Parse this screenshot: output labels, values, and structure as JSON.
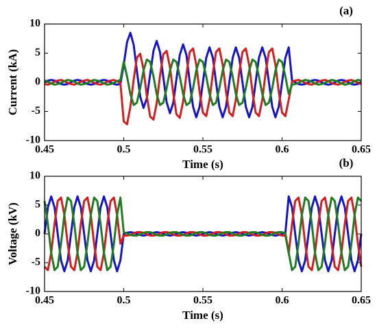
{
  "chart_data": [
    {
      "type": "line",
      "panel_label": "(a)",
      "x_label": "Time (s)",
      "y_label": "Current (kA)",
      "xlim": [
        0.45,
        0.65
      ],
      "xticks": [
        0.45,
        0.5,
        0.55,
        0.6,
        0.65
      ],
      "ylim": [
        -10,
        10
      ],
      "yticks": [
        -10,
        -5,
        0,
        5,
        10
      ],
      "x": [
        0.45,
        0.4521,
        0.4542,
        0.4563,
        0.4583,
        0.4604,
        0.4625,
        0.4646,
        0.4667,
        0.4688,
        0.4708,
        0.4729,
        0.475,
        0.4771,
        0.4792,
        0.4813,
        0.4833,
        0.4854,
        0.4875,
        0.4896,
        0.4917,
        0.4938,
        0.4958,
        0.4979,
        0.5,
        0.5021,
        0.5042,
        0.5063,
        0.5083,
        0.5104,
        0.5125,
        0.5146,
        0.5167,
        0.5188,
        0.5208,
        0.5229,
        0.525,
        0.5271,
        0.5292,
        0.5313,
        0.5333,
        0.5354,
        0.5375,
        0.5396,
        0.5417,
        0.5438,
        0.5458,
        0.5479,
        0.55,
        0.5521,
        0.5542,
        0.5563,
        0.5583,
        0.5604,
        0.5625,
        0.5646,
        0.5667,
        0.5688,
        0.5708,
        0.5729,
        0.575,
        0.5771,
        0.5792,
        0.5813,
        0.5833,
        0.5854,
        0.5875,
        0.5896,
        0.5917,
        0.5938,
        0.5958,
        0.5979,
        0.6,
        0.6021,
        0.6042,
        0.6063,
        0.6083,
        0.6104,
        0.6125,
        0.6146,
        0.6167,
        0.6188,
        0.6208,
        0.6229,
        0.625,
        0.6271,
        0.6292,
        0.6313,
        0.6333,
        0.6354,
        0.6375,
        0.6396,
        0.6417,
        0.6438,
        0.6458,
        0.6479,
        0.65
      ],
      "series": [
        {
          "color": "#1414c8",
          "values": [
            0,
            0.3,
            0.4,
            0.3,
            0,
            -0.3,
            -0.4,
            -0.3,
            0,
            0.3,
            0.4,
            0.3,
            0,
            -0.3,
            -0.4,
            -0.3,
            0,
            0.3,
            0.4,
            0.3,
            0,
            -0.3,
            -0.4,
            -0.3,
            3.0,
            6.9,
            8.5,
            6.4,
            2.0,
            -2.4,
            -4.4,
            -2.7,
            1.4,
            5.4,
            7.1,
            5.2,
            0.9,
            -3.4,
            -5.3,
            -3.5,
            0.6,
            4.7,
            6.5,
            4.7,
            0,
            -4.2,
            -6,
            -4.2,
            0,
            4.2,
            6,
            4.2,
            0,
            -4.2,
            -6,
            -4.2,
            0,
            4.2,
            6,
            4.2,
            0,
            -4.2,
            -6,
            -4.2,
            0,
            4.2,
            6,
            4.2,
            0,
            -4.2,
            -6,
            -4.2,
            0,
            4.2,
            6,
            0.3,
            0,
            -0.3,
            -0.4,
            -0.3,
            0,
            0.3,
            0.4,
            0.3,
            0,
            -0.3,
            -0.4,
            -0.3,
            0,
            0.3,
            0.4,
            0.3,
            0,
            -0.3,
            -0.4,
            -0.3,
            0
          ]
        },
        {
          "color": "#d41e1e",
          "values": [
            -0.3,
            -0.4,
            -0.2,
            0.1,
            0.3,
            0.4,
            0.2,
            -0.1,
            -0.3,
            -0.4,
            -0.2,
            0.1,
            0.3,
            0.4,
            0.2,
            -0.1,
            -0.3,
            -0.4,
            -0.2,
            0.1,
            0.3,
            0.4,
            0.2,
            -0.1,
            -6.7,
            -7.2,
            -4.2,
            0.5,
            4.2,
            4.9,
            2.2,
            -2.4,
            -5.9,
            -6.4,
            -3.6,
            1.1,
            4.8,
            5.4,
            2.6,
            -1.9,
            -5.5,
            -6.1,
            -3.3,
            1.4,
            5.2,
            5.8,
            3,
            -1.6,
            -5.2,
            -5.8,
            -3,
            1.6,
            5.2,
            5.8,
            3,
            -1.6,
            -5.2,
            -5.8,
            -3,
            1.6,
            5.2,
            5.8,
            3,
            -1.6,
            -5.2,
            -5.8,
            -3,
            1.6,
            5.2,
            5.8,
            3,
            -1.6,
            -5.2,
            -5.8,
            -3,
            0.1,
            0.3,
            0.4,
            0.2,
            -0.1,
            -0.3,
            -0.4,
            -0.2,
            0.1,
            0.3,
            0.4,
            0.2,
            -0.1,
            -0.3,
            -0.4,
            -0.2,
            0.1,
            0.3,
            0.4,
            0.2,
            -0.1,
            -0.3
          ]
        },
        {
          "color": "#1e7d1e",
          "values": [
            0.3,
            0.1,
            -0.2,
            -0.4,
            -0.3,
            -0.1,
            0.2,
            0.4,
            0.3,
            0.1,
            -0.2,
            -0.4,
            -0.3,
            -0.1,
            0.2,
            0.4,
            0.3,
            0.1,
            -0.2,
            -0.4,
            -0.3,
            -0.1,
            0.2,
            0.4,
            3.5,
            1,
            -2,
            -3.9,
            -3.5,
            -1,
            2,
            3.9,
            3.5,
            1,
            -2,
            -3.9,
            -3.5,
            -1,
            2,
            3.9,
            3.5,
            1,
            -2,
            -3.9,
            -3.5,
            -1,
            2,
            3.9,
            3.5,
            1,
            -2,
            -3.9,
            -3.5,
            -1,
            2,
            3.9,
            3.5,
            1,
            -2,
            -3.9,
            -3.5,
            -1,
            2,
            3.9,
            3.5,
            1,
            -2,
            -3.9,
            -3.5,
            -1,
            2,
            3.9,
            3.5,
            1,
            -2,
            -0.4,
            -0.3,
            -0.1,
            0.2,
            0.4,
            0.3,
            0.1,
            -0.2,
            -0.4,
            -0.3,
            -0.1,
            0.2,
            0.4,
            0.3,
            0.1,
            -0.2,
            -0.4,
            -0.3,
            -0.1,
            0.2,
            0.4,
            0.3
          ]
        }
      ]
    },
    {
      "type": "line",
      "panel_label": "(b)",
      "x_label": "Time (s)",
      "y_label": "Voltage (kV)",
      "xlim": [
        0.45,
        0.65
      ],
      "xticks": [
        0.45,
        0.5,
        0.55,
        0.6,
        0.65
      ],
      "ylim": [
        -10,
        10
      ],
      "yticks": [
        -10,
        -5,
        0,
        5,
        10
      ],
      "x": [
        0.45,
        0.4521,
        0.4542,
        0.4563,
        0.4583,
        0.4604,
        0.4625,
        0.4646,
        0.4667,
        0.4688,
        0.4708,
        0.4729,
        0.475,
        0.4771,
        0.4792,
        0.4813,
        0.4833,
        0.4854,
        0.4875,
        0.4896,
        0.4917,
        0.4938,
        0.4958,
        0.4979,
        0.5,
        0.5021,
        0.5042,
        0.5063,
        0.5083,
        0.5104,
        0.5125,
        0.5146,
        0.5167,
        0.5188,
        0.5208,
        0.5229,
        0.525,
        0.5271,
        0.5292,
        0.5313,
        0.5333,
        0.5354,
        0.5375,
        0.5396,
        0.5417,
        0.5438,
        0.5458,
        0.5479,
        0.55,
        0.5521,
        0.5542,
        0.5563,
        0.5583,
        0.5604,
        0.5625,
        0.5646,
        0.5667,
        0.5688,
        0.5708,
        0.5729,
        0.575,
        0.5771,
        0.5792,
        0.5813,
        0.5833,
        0.5854,
        0.5875,
        0.5896,
        0.5917,
        0.5938,
        0.5958,
        0.5979,
        0.6,
        0.6021,
        0.6042,
        0.6063,
        0.6083,
        0.6104,
        0.6125,
        0.6146,
        0.6167,
        0.6188,
        0.6208,
        0.6229,
        0.625,
        0.6271,
        0.6292,
        0.6313,
        0.6333,
        0.6354,
        0.6375,
        0.6396,
        0.6417,
        0.6438,
        0.6458,
        0.6479,
        0.65
      ],
      "series": [
        {
          "color": "#1414c8",
          "values": [
            0,
            4.6,
            6.5,
            4.6,
            0,
            -4.6,
            -6.5,
            -4.6,
            0,
            4.6,
            6.5,
            4.6,
            0,
            -4.6,
            -6.5,
            -4.6,
            0,
            4.6,
            6.5,
            4.6,
            0,
            -4.6,
            -6.5,
            -4.6,
            0,
            0.2,
            0.3,
            0.2,
            0,
            -0.2,
            -0.3,
            -0.2,
            0,
            0.2,
            0.3,
            0.2,
            0,
            -0.2,
            -0.3,
            -0.2,
            0,
            0.2,
            0.3,
            0.2,
            0,
            -0.2,
            -0.3,
            -0.2,
            0,
            0.2,
            0.3,
            0.2,
            0,
            -0.2,
            -0.3,
            -0.2,
            0,
            0.2,
            0.3,
            0.2,
            0,
            -0.2,
            -0.3,
            -0.2,
            0,
            0.2,
            0.3,
            0.2,
            0,
            -0.2,
            -0.3,
            -0.2,
            0,
            0.2,
            6.5,
            4.6,
            0,
            -4.6,
            -6.5,
            -4.6,
            0,
            4.6,
            6.5,
            4.6,
            0,
            -4.6,
            -6.5,
            -4.6,
            0,
            4.6,
            6.5,
            4.6,
            0,
            -4.6,
            -6.5,
            -4.6,
            0
          ]
        },
        {
          "color": "#d41e1e",
          "values": [
            -5.7,
            -6.3,
            -3.3,
            1.7,
            5.7,
            6.3,
            3.3,
            -1.7,
            -5.7,
            -6.3,
            -3.3,
            1.7,
            5.7,
            6.3,
            3.3,
            -1.7,
            -5.7,
            -6.3,
            -3.3,
            1.7,
            5.7,
            6.3,
            3.3,
            -1.7,
            -0.3,
            -0.3,
            -0.2,
            0.1,
            0.3,
            0.3,
            0.2,
            -0.1,
            -0.3,
            -0.3,
            -0.2,
            0.1,
            0.3,
            0.3,
            0.2,
            -0.1,
            -0.3,
            -0.3,
            -0.2,
            0.1,
            0.3,
            0.3,
            0.2,
            -0.1,
            -0.3,
            -0.3,
            -0.2,
            0.1,
            0.3,
            0.3,
            0.2,
            -0.1,
            -0.3,
            -0.3,
            -0.2,
            0.1,
            0.3,
            0.3,
            0.2,
            -0.1,
            -0.3,
            -0.3,
            -0.2,
            0.1,
            0.3,
            0.3,
            0.2,
            -0.1,
            -0.3,
            -0.3,
            -3.3,
            1.7,
            5.7,
            6.3,
            3.3,
            -1.7,
            -5.7,
            -6.3,
            -3.3,
            1.7,
            5.7,
            6.3,
            3.3,
            -1.7,
            -5.7,
            -6.3,
            -3.3,
            1.7,
            5.7,
            6.3,
            3.3,
            -1.7,
            -5.7
          ]
        },
        {
          "color": "#1e7d1e",
          "values": [
            5.7,
            1.7,
            -3.3,
            -6.3,
            -5.7,
            -1.7,
            3.3,
            6.3,
            5.7,
            1.7,
            -3.3,
            -6.3,
            -5.7,
            -1.7,
            3.3,
            6.3,
            5.7,
            1.7,
            -3.3,
            -6.3,
            -5.7,
            -1.7,
            3.3,
            6.3,
            0.3,
            0.1,
            -0.2,
            -0.3,
            -0.3,
            -0.1,
            0.2,
            0.3,
            0.3,
            0.1,
            -0.2,
            -0.3,
            -0.3,
            -0.1,
            0.2,
            0.3,
            0.3,
            0.1,
            -0.2,
            -0.3,
            -0.3,
            -0.1,
            0.2,
            0.3,
            0.3,
            0.1,
            -0.2,
            -0.3,
            -0.3,
            -0.1,
            0.2,
            0.3,
            0.3,
            0.1,
            -0.2,
            -0.3,
            -0.3,
            -0.1,
            0.2,
            0.3,
            0.3,
            0.1,
            -0.2,
            -0.3,
            -0.3,
            -0.1,
            0.2,
            0.3,
            0.3,
            0.1,
            -3.3,
            -6.3,
            -5.7,
            -1.7,
            3.3,
            6.3,
            5.7,
            1.7,
            -3.3,
            -6.3,
            -5.7,
            -1.7,
            3.3,
            6.3,
            5.7,
            1.7,
            -3.3,
            -6.3,
            -5.7,
            -1.7,
            3.3,
            6.3,
            5.7
          ]
        }
      ]
    }
  ]
}
